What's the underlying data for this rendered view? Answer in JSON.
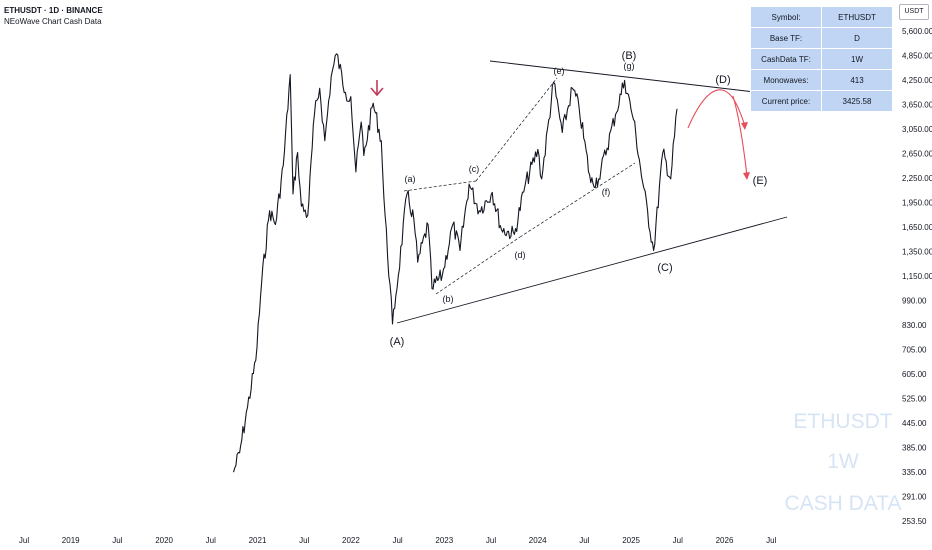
{
  "header": {
    "title": "ETHUSDT · 1D · BINANCE",
    "subtitle": "NEoWave Chart Cash Data"
  },
  "info_table": [
    {
      "key": "Symbol:",
      "value": "ETHUSDT"
    },
    {
      "key": "Base TF:",
      "value": "D"
    },
    {
      "key": "CashData TF:",
      "value": "1W"
    },
    {
      "key": "Monowaves:",
      "value": "413"
    },
    {
      "key": "Current price:",
      "value": "3425.58"
    }
  ],
  "currency_label": "USDT",
  "watermark": [
    "ETHUSDT",
    "1W",
    "CASH DATA"
  ],
  "colors": {
    "price": "#131722",
    "projection": "#e84c5a",
    "table_bg": "#bfd5f3",
    "watermark": "#d6e4f5"
  },
  "chart_data": {
    "type": "line",
    "symbol": "ETHUSDT",
    "scale": "log",
    "x_ticks": [
      "Jul",
      "2019",
      "Jul",
      "2020",
      "Jul",
      "2021",
      "Jul",
      "2022",
      "Jul",
      "2023",
      "Jul",
      "2024",
      "Jul",
      "2025",
      "Jul",
      "2026",
      "Jul"
    ],
    "y_ticks": [
      "5,600.00",
      "4,850.00",
      "4,250.00",
      "3,650.00",
      "3,050.00",
      "2,650.00",
      "2,250.00",
      "1,950.00",
      "1,650.00",
      "1,350.00",
      "1,150.00",
      "990.00",
      "830.00",
      "705.00",
      "605.00",
      "525.00",
      "445.00",
      "385.00",
      "335.00",
      "291.00",
      "253.50"
    ],
    "series": [
      {
        "values": [
          [
            "2020-10-01",
            345
          ],
          [
            "2020-10-25",
            390
          ],
          [
            "2020-11-25",
            520
          ],
          [
            "2020-12-28",
            700
          ],
          [
            "2021-01-20",
            1150
          ],
          [
            "2021-02-20",
            1800
          ],
          [
            "2021-03-15",
            1650
          ],
          [
            "2021-04-15",
            2400
          ],
          [
            "2021-05-12",
            4250
          ],
          [
            "2021-05-23",
            2000
          ],
          [
            "2021-06-10",
            2600
          ],
          [
            "2021-06-25",
            1850
          ],
          [
            "2021-07-20",
            1750
          ],
          [
            "2021-08-15",
            3300
          ],
          [
            "2021-09-05",
            3900
          ],
          [
            "2021-09-25",
            2800
          ],
          [
            "2021-10-20",
            4200
          ],
          [
            "2021-11-10",
            4850
          ],
          [
            "2021-12-15",
            3800
          ],
          [
            "2022-01-05",
            3700
          ],
          [
            "2022-01-25",
            2300
          ],
          [
            "2022-02-15",
            3150
          ],
          [
            "2022-02-25",
            2550
          ],
          [
            "2022-04-03",
            3550
          ],
          [
            "2022-05-05",
            2800
          ],
          [
            "2022-05-15",
            1950
          ],
          [
            "2022-06-18",
            880
          ],
          [
            "2022-07-01",
            1050
          ],
          [
            "2022-08-14",
            2000
          ],
          [
            "2022-09-10",
            1700
          ],
          [
            "2022-09-25",
            1300
          ],
          [
            "2022-11-05",
            1650
          ],
          [
            "2022-11-20",
            1100
          ],
          [
            "2022-12-31",
            1200
          ],
          [
            "2023-02-10",
            1650
          ],
          [
            "2023-03-10",
            1400
          ],
          [
            "2023-04-15",
            2130
          ],
          [
            "2023-05-25",
            1800
          ],
          [
            "2023-07-15",
            2020
          ],
          [
            "2023-08-20",
            1600
          ],
          [
            "2023-10-10",
            1550
          ],
          [
            "2023-11-20",
            2100
          ],
          [
            "2024-01-10",
            2650
          ],
          [
            "2024-01-25",
            2200
          ],
          [
            "2024-03-12",
            4050
          ],
          [
            "2024-04-15",
            2950
          ],
          [
            "2024-05-25",
            3900
          ],
          [
            "2024-06-20",
            3450
          ],
          [
            "2024-08-05",
            2150
          ],
          [
            "2024-09-05",
            2200
          ],
          [
            "2024-11-10",
            3300
          ],
          [
            "2024-12-16",
            4100
          ],
          [
            "2025-01-20",
            3200
          ],
          [
            "2025-02-25",
            2150
          ],
          [
            "2025-04-09",
            1400
          ],
          [
            "2025-05-15",
            2600
          ],
          [
            "2025-06-15",
            2200
          ],
          [
            "2025-07-10",
            3425.58
          ]
        ]
      }
    ],
    "wave_labels": [
      "(A)",
      "(B)",
      "(C)",
      "(D)",
      "(E)",
      "(a)",
      "(b)",
      "(c)",
      "(d)",
      "(e)",
      "(f)",
      "(g)"
    ]
  }
}
